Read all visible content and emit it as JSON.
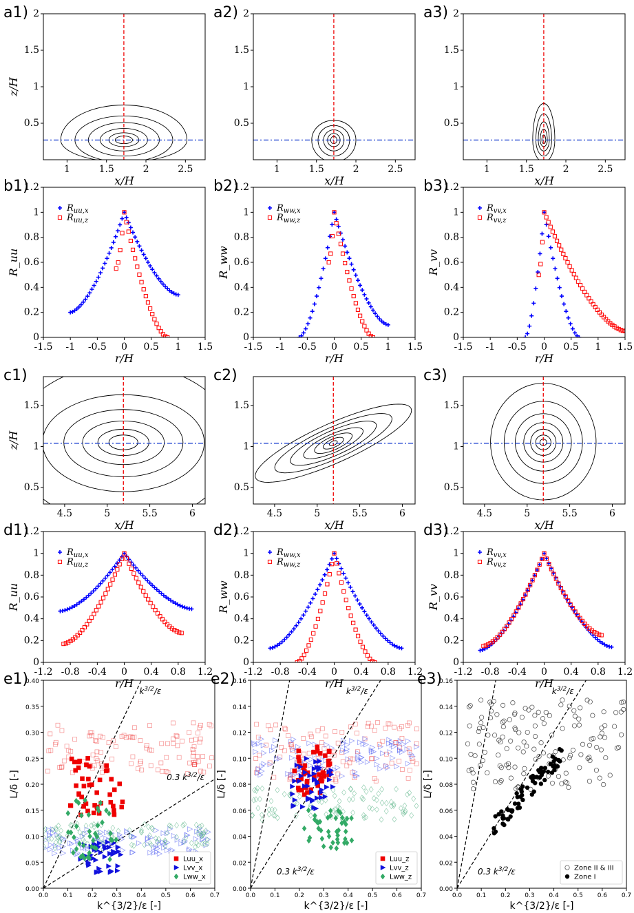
{
  "chart_data": [
    {
      "id": "a1",
      "panel_label": "a1)",
      "type": "contour",
      "xlabel": "x/H",
      "ylabel": "z/H",
      "xlim": [
        0.7,
        2.75
      ],
      "ylim": [
        0.0,
        2.0
      ],
      "xticks": [
        "1",
        "1.5",
        "2",
        "2.5"
      ],
      "xtick_values": [
        1,
        1.5,
        2,
        2.5
      ],
      "yticks": [
        "0.5",
        "1",
        "1.5",
        "2"
      ],
      "ytick_values": [
        0.5,
        1,
        1.5,
        2
      ],
      "center": [
        1.72,
        0.27
      ],
      "vline_x": 1.72,
      "hline_y": 0.27,
      "contours": [
        {
          "rx": 0.8,
          "top": 0.48,
          "bottom": 0.3
        },
        {
          "rx": 0.62,
          "top": 0.33,
          "bottom": 0.3
        },
        {
          "rx": 0.45,
          "top": 0.24,
          "bottom": 0.22
        },
        {
          "rx": 0.3,
          "top": 0.16,
          "bottom": 0.15
        },
        {
          "rx": 0.19,
          "top": 0.1,
          "bottom": 0.09
        },
        {
          "rx": 0.11,
          "top": 0.055,
          "bottom": 0.05
        }
      ]
    },
    {
      "id": "a2",
      "panel_label": "a2)",
      "type": "contour",
      "xlabel": "x/H",
      "ylabel": "",
      "xlim": [
        0.7,
        2.75
      ],
      "ylim": [
        0.0,
        2.0
      ],
      "xticks": [
        "1",
        "1.5",
        "2",
        "2.5"
      ],
      "xtick_values": [
        1,
        1.5,
        2,
        2.5
      ],
      "yticks": [
        "0.5",
        "1",
        "1.5",
        "2"
      ],
      "ytick_values": [
        0.5,
        1,
        1.5,
        2
      ],
      "center": [
        1.72,
        0.27
      ],
      "vline_x": 1.72,
      "hline_y": 0.27,
      "contours": [
        {
          "rx": 0.28,
          "top": 0.27,
          "bottom": 0.3
        },
        {
          "rx": 0.2,
          "top": 0.2,
          "bottom": 0.22
        },
        {
          "rx": 0.13,
          "top": 0.14,
          "bottom": 0.15
        },
        {
          "rx": 0.08,
          "top": 0.09,
          "bottom": 0.09
        },
        {
          "rx": 0.04,
          "top": 0.05,
          "bottom": 0.05
        }
      ]
    },
    {
      "id": "a3",
      "panel_label": "a3)",
      "type": "contour",
      "xlabel": "x/H",
      "ylabel": "",
      "xlim": [
        0.7,
        2.75
      ],
      "ylim": [
        0.0,
        2.0
      ],
      "xticks": [
        "1",
        "1.5",
        "2",
        "2.5"
      ],
      "xtick_values": [
        1,
        1.5,
        2,
        2.5
      ],
      "yticks": [
        "0.5",
        "1",
        "1.5",
        "2"
      ],
      "ytick_values": [
        0.5,
        1,
        1.5,
        2
      ],
      "center": [
        1.72,
        0.27
      ],
      "vline_x": 1.72,
      "hline_y": 0.27,
      "contours": [
        {
          "rx": 0.14,
          "top": 0.5,
          "bottom": 0.3
        },
        {
          "rx": 0.1,
          "top": 0.36,
          "bottom": 0.22
        },
        {
          "rx": 0.07,
          "top": 0.25,
          "bottom": 0.15
        },
        {
          "rx": 0.045,
          "top": 0.15,
          "bottom": 0.09
        },
        {
          "rx": 0.025,
          "top": 0.07,
          "bottom": 0.05
        }
      ]
    },
    {
      "id": "b1",
      "panel_label": "b1)",
      "type": "scatter",
      "xlabel": "r/H",
      "ylabel": "R_uu",
      "xlim": [
        -1.5,
        1.5
      ],
      "ylim": [
        0,
        1.2
      ],
      "xticks": [
        "-1.5",
        "-1",
        "-0.5",
        "0",
        "0.5",
        "1",
        "1.5"
      ],
      "xtick_values": [
        -1.5,
        -1,
        -0.5,
        0,
        0.5,
        1,
        1.5
      ],
      "yticks": [
        "0",
        "0.2",
        "0.4",
        "0.6",
        "0.8",
        "1",
        "1.2"
      ],
      "ytick_values": [
        0,
        0.2,
        0.4,
        0.6,
        0.8,
        1,
        1.2
      ],
      "series": [
        {
          "name": "R",
          "sub": "uu,x",
          "marker": "plus",
          "color": "#0000ff",
          "xmin": -1.0,
          "xmax": 1.0,
          "left_end": 0.2,
          "right_end": 0.34,
          "spacing": 0.04
        },
        {
          "name": "R",
          "sub": "uu,z",
          "marker": "square",
          "color": "#ff0000",
          "xmin": -0.15,
          "xmax": 0.8,
          "left_end": 0.55,
          "right_end": 0.0,
          "spacing": 0.04
        }
      ]
    },
    {
      "id": "b2",
      "panel_label": "b2)",
      "type": "scatter",
      "xlabel": "r/H",
      "ylabel": "R_ww",
      "xlim": [
        -1.5,
        1.5
      ],
      "ylim": [
        0,
        1.2
      ],
      "xticks": [
        "-1.5",
        "-1",
        "-0.5",
        "0",
        "0.5",
        "1",
        "1.5"
      ],
      "xtick_values": [
        -1.5,
        -1,
        -0.5,
        0,
        0.5,
        1,
        1.5
      ],
      "yticks": [
        "0",
        "0.2",
        "0.4",
        "0.6",
        "0.8",
        "1",
        "1.2"
      ],
      "ytick_values": [
        0,
        0.2,
        0.4,
        0.6,
        0.8,
        1,
        1.2
      ],
      "series": [
        {
          "name": "R",
          "sub": "ww,x",
          "marker": "plus",
          "color": "#0000ff",
          "xmin": -0.65,
          "xmax": 1.0,
          "left_end": 0.0,
          "right_end": 0.1,
          "spacing": 0.04
        },
        {
          "name": "R",
          "sub": "ww,z",
          "marker": "square",
          "color": "#ff0000",
          "xmin": -0.1,
          "xmax": 0.72,
          "left_end": 0.6,
          "right_end": 0.0,
          "spacing": 0.04
        }
      ]
    },
    {
      "id": "b3",
      "panel_label": "b3)",
      "type": "scatter",
      "xlabel": "r/H",
      "ylabel": "R_vv",
      "xlim": [
        -1.5,
        1.5
      ],
      "ylim": [
        0,
        1.2
      ],
      "xticks": [
        "-1.5",
        "-1",
        "-0.5",
        "0",
        "0.5",
        "1",
        "1.5"
      ],
      "xtick_values": [
        -1.5,
        -1,
        -0.5,
        0,
        0.5,
        1,
        1.5
      ],
      "yticks": [
        "0",
        "0.2",
        "0.4",
        "0.6",
        "0.8",
        "1",
        "1.2"
      ],
      "ytick_values": [
        0,
        0.2,
        0.4,
        0.6,
        0.8,
        1,
        1.2
      ],
      "series": [
        {
          "name": "R",
          "sub": "vv,x",
          "marker": "plus",
          "color": "#0000ff",
          "xmin": -0.35,
          "xmax": 0.65,
          "left_end": 0.0,
          "right_end": 0.0,
          "spacing": 0.04
        },
        {
          "name": "R",
          "sub": "vv,z",
          "marker": "square",
          "color": "#ff0000",
          "xmin": -0.1,
          "xmax": 1.5,
          "left_end": 0.5,
          "right_end": 0.05,
          "spacing": 0.04
        }
      ]
    },
    {
      "id": "c1",
      "panel_label": "c1)",
      "type": "contour",
      "xlabel": "x/H",
      "ylabel": "z/H",
      "xlim": [
        4.25,
        6.15
      ],
      "ylim": [
        0.3,
        1.85
      ],
      "xticks": [
        "4.5",
        "5",
        "5.5",
        "6"
      ],
      "xtick_values": [
        4.5,
        5,
        5.5,
        6
      ],
      "yticks": [
        "0.5",
        "1",
        "1.5"
      ],
      "ytick_values": [
        0.5,
        1,
        1.5
      ],
      "center": [
        5.19,
        1.05
      ],
      "vline_x": 5.19,
      "hline_y": 1.04,
      "contours": [
        {
          "rx": 1.3,
          "top": 0.95,
          "bottom": 1.0
        },
        {
          "rx": 0.95,
          "top": 0.58,
          "bottom": 0.6
        },
        {
          "rx": 0.7,
          "top": 0.4,
          "bottom": 0.42
        },
        {
          "rx": 0.48,
          "top": 0.26,
          "bottom": 0.27
        },
        {
          "rx": 0.3,
          "top": 0.16,
          "bottom": 0.16
        },
        {
          "rx": 0.17,
          "top": 0.09,
          "bottom": 0.09
        }
      ]
    },
    {
      "id": "c2",
      "panel_label": "c2)",
      "type": "contour",
      "xlabel": "x/H",
      "ylabel": "",
      "xlim": [
        4.25,
        6.15
      ],
      "ylim": [
        0.3,
        1.85
      ],
      "xticks": [
        "4.5",
        "5",
        "5.5",
        "6"
      ],
      "xtick_values": [
        4.5,
        5,
        5.5,
        6
      ],
      "yticks": [
        "0.5",
        "1",
        "1.5"
      ],
      "ytick_values": [
        0.5,
        1,
        1.5
      ],
      "center": [
        5.19,
        1.04
      ],
      "vline_x": 5.19,
      "hline_y": 1.04,
      "tilted": true,
      "contours": [
        {
          "rx": 1.0,
          "top": 0.24,
          "bottom": 0.24
        },
        {
          "rx": 0.75,
          "top": 0.19,
          "bottom": 0.19
        },
        {
          "rx": 0.55,
          "top": 0.15,
          "bottom": 0.15
        },
        {
          "rx": 0.38,
          "top": 0.11,
          "bottom": 0.11
        },
        {
          "rx": 0.24,
          "top": 0.08,
          "bottom": 0.08
        },
        {
          "rx": 0.13,
          "top": 0.05,
          "bottom": 0.05
        },
        {
          "rx": 0.05,
          "top": 0.025,
          "bottom": 0.025
        }
      ]
    },
    {
      "id": "c3",
      "panel_label": "c3)",
      "type": "contour",
      "xlabel": "x/H",
      "ylabel": "",
      "xlim": [
        4.25,
        6.15
      ],
      "ylim": [
        0.3,
        1.85
      ],
      "xticks": [
        "4.5",
        "5",
        "5.5",
        "6"
      ],
      "xtick_values": [
        4.5,
        5,
        5.5,
        6
      ],
      "yticks": [
        "0.5",
        "1",
        "1.5"
      ],
      "ytick_values": [
        0.5,
        1,
        1.5
      ],
      "center": [
        5.19,
        1.05
      ],
      "vline_x": 5.19,
      "hline_y": 1.04,
      "contours": [
        {
          "rx": 0.62,
          "top": 0.72,
          "bottom": 0.7
        },
        {
          "rx": 0.46,
          "top": 0.5,
          "bottom": 0.5
        },
        {
          "rx": 0.33,
          "top": 0.35,
          "bottom": 0.35
        },
        {
          "rx": 0.23,
          "top": 0.24,
          "bottom": 0.24
        },
        {
          "rx": 0.15,
          "top": 0.16,
          "bottom": 0.16
        },
        {
          "rx": 0.09,
          "top": 0.09,
          "bottom": 0.09
        },
        {
          "rx": 0.04,
          "top": 0.04,
          "bottom": 0.04
        }
      ]
    },
    {
      "id": "d1",
      "panel_label": "d1)",
      "type": "scatter",
      "xlabel": "r/H",
      "ylabel": "R_uu",
      "xlim": [
        -1.2,
        1.2
      ],
      "ylim": [
        0,
        1.2
      ],
      "xticks": [
        "-1.2",
        "-0.8",
        "-0.4",
        "0",
        "0.4",
        "0.8",
        "1.2"
      ],
      "xtick_values": [
        -1.2,
        -0.8,
        -0.4,
        0,
        0.4,
        0.8,
        1.2
      ],
      "yticks": [
        "0",
        "0.2",
        "0.4",
        "0.6",
        "0.8",
        "1",
        "1.2"
      ],
      "ytick_values": [
        0,
        0.2,
        0.4,
        0.6,
        0.8,
        1,
        1.2
      ],
      "series": [
        {
          "name": "R",
          "sub": "uu,x",
          "marker": "plus",
          "color": "#0000ff",
          "xmin": -0.95,
          "xmax": 1.0,
          "left_end": 0.47,
          "right_end": 0.49,
          "spacing": 0.035
        },
        {
          "name": "R",
          "sub": "uu,z",
          "marker": "square",
          "color": "#ff0000",
          "xmin": -0.9,
          "xmax": 0.85,
          "left_end": 0.17,
          "right_end": 0.27,
          "spacing": 0.035
        }
      ]
    },
    {
      "id": "d2",
      "panel_label": "d2)",
      "type": "scatter",
      "xlabel": "r/H",
      "ylabel": "R_ww",
      "xlim": [
        -1.2,
        1.2
      ],
      "ylim": [
        0,
        1.2
      ],
      "xticks": [
        "-1.2",
        "-0.8",
        "-0.4",
        "0",
        "0.4",
        "0.8",
        "1.2"
      ],
      "xtick_values": [
        -1.2,
        -0.8,
        -0.4,
        0,
        0.4,
        0.8,
        1.2
      ],
      "yticks": [
        "0",
        "0.2",
        "0.4",
        "0.6",
        "0.8",
        "1",
        "1.2"
      ],
      "ytick_values": [
        0,
        0.2,
        0.4,
        0.6,
        0.8,
        1,
        1.2
      ],
      "series": [
        {
          "name": "R",
          "sub": "ww,x",
          "marker": "plus",
          "color": "#0000ff",
          "xmin": -0.95,
          "xmax": 1.0,
          "left_end": 0.13,
          "right_end": 0.13,
          "spacing": 0.035
        },
        {
          "name": "R",
          "sub": "ww,z",
          "marker": "square",
          "color": "#ff0000",
          "xmin": -0.55,
          "xmax": 0.6,
          "left_end": 0.0,
          "right_end": 0.0,
          "spacing": 0.035
        }
      ]
    },
    {
      "id": "d3",
      "panel_label": "d3)",
      "type": "scatter",
      "xlabel": "r/H",
      "ylabel": "R_vv",
      "xlim": [
        -1.2,
        1.2
      ],
      "ylim": [
        0,
        1.2
      ],
      "xticks": [
        "-1.2",
        "-0.8",
        "-0.4",
        "0",
        "0.4",
        "0.8",
        "1.2"
      ],
      "xtick_values": [
        -1.2,
        -0.8,
        -0.4,
        0,
        0.4,
        0.8,
        1.2
      ],
      "yticks": [
        "0",
        "0.2",
        "0.4",
        "0.6",
        "0.8",
        "1",
        "1.2"
      ],
      "ytick_values": [
        0,
        0.2,
        0.4,
        0.6,
        0.8,
        1,
        1.2
      ],
      "series": [
        {
          "name": "R",
          "sub": "vv,x",
          "marker": "plus",
          "color": "#0000ff",
          "xmin": -0.95,
          "xmax": 1.0,
          "left_end": 0.11,
          "right_end": 0.14,
          "spacing": 0.035
        },
        {
          "name": "R",
          "sub": "vv,z",
          "marker": "square",
          "color": "#ff0000",
          "xmin": -0.9,
          "xmax": 0.85,
          "left_end": 0.15,
          "right_end": 0.25,
          "spacing": 0.035
        }
      ]
    },
    {
      "id": "e1",
      "panel_label": "e1)",
      "type": "scatter",
      "xlabel": "k^{3/2}/ε [-]",
      "ylabel": "L/δ [-]",
      "xlim": [
        0,
        0.7
      ],
      "ylim": [
        0,
        0.4
      ],
      "xticks": [
        "0.0",
        "0.1",
        "0.2",
        "0.3",
        "0.4",
        "0.5",
        "0.6",
        "0.7"
      ],
      "xtick_values": [
        0,
        0.1,
        0.2,
        0.3,
        0.4,
        0.5,
        0.6,
        0.7
      ],
      "yticks": [
        "0.00",
        "0.05",
        "0.10",
        "0.15",
        "0.20",
        "0.25",
        "0.30",
        "0.35",
        "0.40"
      ],
      "ytick_values": [
        0,
        0.05,
        0.1,
        0.15,
        0.2,
        0.25,
        0.3,
        0.35,
        0.4
      ],
      "lines": [
        {
          "slope": 1.0,
          "label": "k^{3/2}/ε"
        },
        {
          "slope": 0.3,
          "label": "0.3 k^{3/2}/ε"
        }
      ],
      "line_labels": [
        "k",
        "3/2",
        "/ε",
        "0.3 k",
        "3/2",
        "/ε"
      ],
      "legend": [
        "Luu_x",
        "Lvv_x",
        "Lww_x"
      ],
      "series": [
        {
          "name": "Luu_x",
          "marker": "square",
          "color": "#ee0000"
        },
        {
          "name": "Lvv_x",
          "marker": "triangle-right",
          "color": "#1111dd"
        },
        {
          "name": "Lww_x",
          "marker": "diamond",
          "color": "#33aa66"
        }
      ]
    },
    {
      "id": "e2",
      "panel_label": "e2)",
      "type": "scatter",
      "xlabel": "k^{3/2}/ε [-]",
      "ylabel": "L/δ [-]",
      "xlim": [
        0,
        0.7
      ],
      "ylim": [
        0,
        0.16
      ],
      "xticks": [
        "0.0",
        "0.1",
        "0.2",
        "0.3",
        "0.4",
        "0.5",
        "0.6",
        "0.7"
      ],
      "xtick_values": [
        0,
        0.1,
        0.2,
        0.3,
        0.4,
        0.5,
        0.6,
        0.7
      ],
      "yticks": [
        "0.00",
        "0.02",
        "0.04",
        "0.06",
        "0.08",
        "0.10",
        "0.12",
        "0.14",
        "0.16"
      ],
      "ytick_values": [
        0,
        0.02,
        0.04,
        0.06,
        0.08,
        0.1,
        0.12,
        0.14,
        0.16
      ],
      "lines": [
        {
          "slope": 1.0,
          "label": "k^{3/2}/ε"
        },
        {
          "slope": 0.3,
          "label": "0.3 k^{3/2}/ε"
        }
      ],
      "line_labels": [
        "k",
        "3/2",
        "/ε",
        "0.3 k",
        "3/2",
        "/ε"
      ],
      "legend": [
        "Luu_z",
        "Lvv_z",
        "Lww_z"
      ],
      "series": [
        {
          "name": "Luu_z",
          "marker": "square",
          "color": "#ee0000"
        },
        {
          "name": "Lvv_z",
          "marker": "triangle-right",
          "color": "#1111dd"
        },
        {
          "name": "Lww_z",
          "marker": "diamond",
          "color": "#33aa66"
        }
      ]
    },
    {
      "id": "e3",
      "panel_label": "e3)",
      "type": "scatter",
      "xlabel": "k^{3/2}/ε [-]",
      "ylabel": "L/δ [-]",
      "xlim": [
        0,
        0.7
      ],
      "ylim": [
        0,
        0.16
      ],
      "xticks": [
        "0.0",
        "0.1",
        "0.2",
        "0.3",
        "0.4",
        "0.5",
        "0.6",
        "0.7"
      ],
      "xtick_values": [
        0,
        0.1,
        0.2,
        0.3,
        0.4,
        0.5,
        0.6,
        0.7
      ],
      "yticks": [
        "0.00",
        "0.02",
        "0.04",
        "0.06",
        "0.08",
        "0.10",
        "0.12",
        "0.14",
        "0.16"
      ],
      "ytick_values": [
        0,
        0.02,
        0.04,
        0.06,
        0.08,
        0.1,
        0.12,
        0.14,
        0.16
      ],
      "lines": [
        {
          "slope": 1.0,
          "label": "k^{3/2}/ε"
        },
        {
          "slope": 0.3,
          "label": "0.3 k^{3/2}/ε"
        }
      ],
      "line_labels": [
        "k",
        "3/2",
        "/ε",
        "0.3 k",
        "3/2",
        "/ε"
      ],
      "legend": [
        "Zone II & III",
        "Zone I"
      ],
      "series": [
        {
          "name": "Zone II & III",
          "marker": "circle-open",
          "color": "#444444"
        },
        {
          "name": "Zone I",
          "marker": "circle-filled",
          "color": "#000000"
        }
      ]
    }
  ]
}
